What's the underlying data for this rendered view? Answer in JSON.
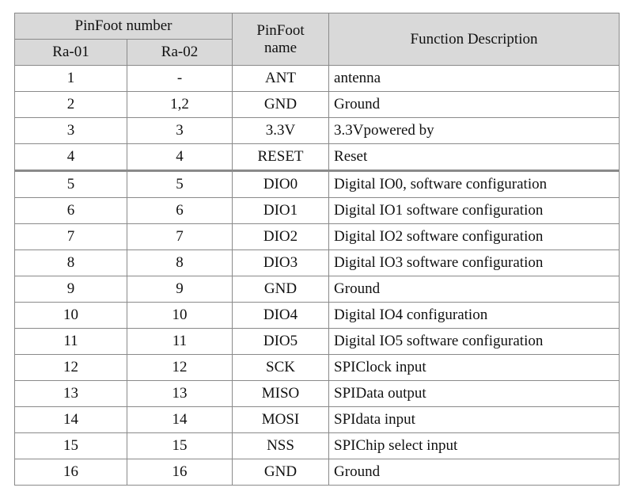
{
  "header": {
    "group": "PinFoot number",
    "sub": [
      "Ra-01",
      "Ra-02"
    ],
    "name": "PinFoot name",
    "function": "Function Description"
  },
  "table": {
    "rows": [
      [
        1,
        "-",
        "ANT",
        "antenna"
      ],
      [
        2,
        "1,2",
        "GND",
        "Ground"
      ],
      [
        3,
        3,
        "3.3V",
        "3.3Vpowered by"
      ],
      [
        4,
        4,
        "RESET",
        "Reset"
      ],
      [
        5,
        5,
        "DIO0",
        "Digital IO0, software configuration"
      ],
      [
        6,
        6,
        "DIO1",
        "Digital IO1 software configuration"
      ],
      [
        7,
        7,
        "DIO2",
        "Digital IO2 software configuration"
      ],
      [
        8,
        8,
        "DIO3",
        "Digital IO3 software configuration"
      ],
      [
        9,
        9,
        "GND",
        "Ground"
      ],
      [
        10,
        10,
        "DIO4",
        "Digital IO4 configuration"
      ],
      [
        11,
        11,
        "DIO5",
        "Digital IO5 software configuration"
      ],
      [
        12,
        12,
        "SCK",
        "SPIClock input"
      ],
      [
        13,
        13,
        "MISO",
        "SPIData output"
      ],
      [
        14,
        14,
        "MOSI",
        "SPIdata input"
      ],
      [
        15,
        15,
        "NSS",
        "SPIChip select input"
      ],
      [
        16,
        16,
        "GND",
        "Ground"
      ]
    ]
  }
}
